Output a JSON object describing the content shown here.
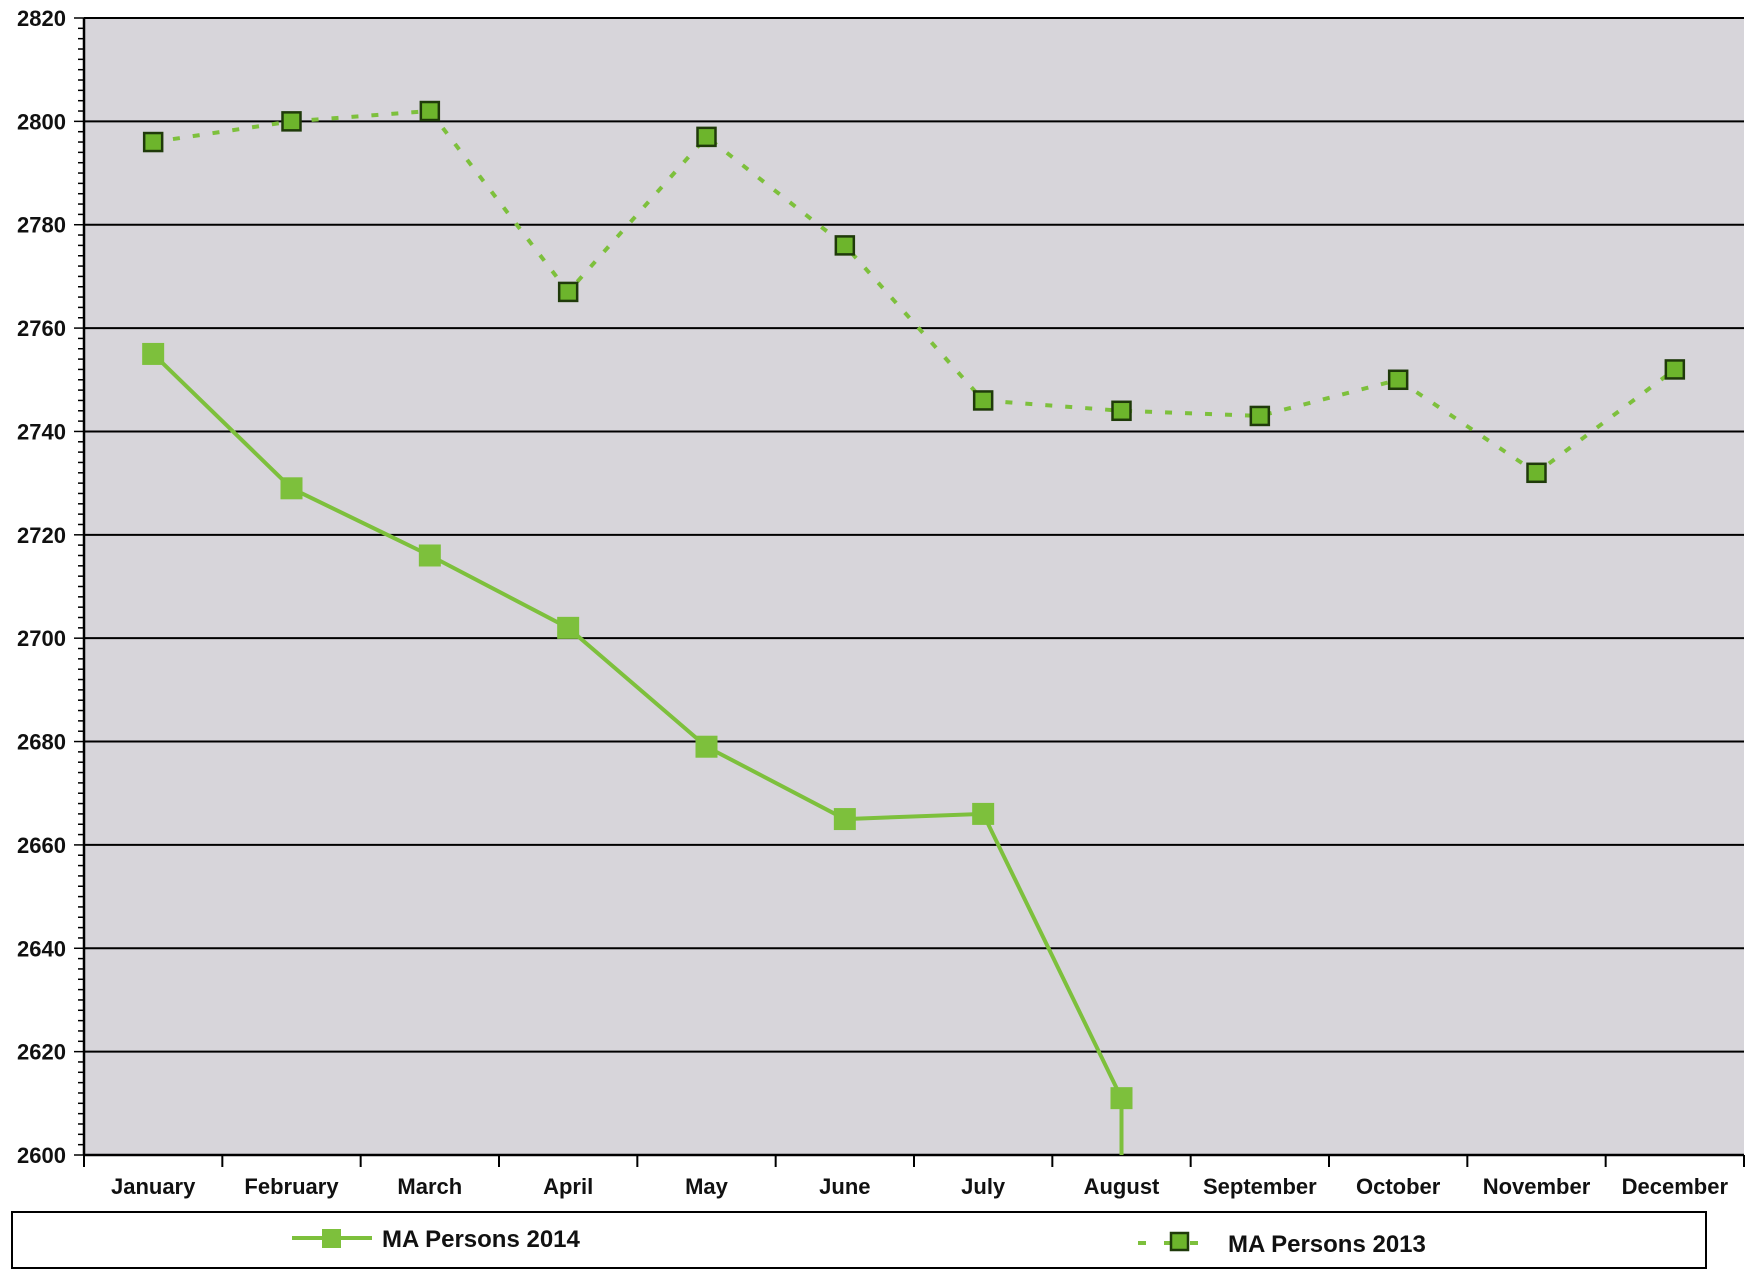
{
  "chart_data": {
    "type": "line",
    "categories": [
      "January",
      "February",
      "March",
      "April",
      "May",
      "June",
      "July",
      "August",
      "September",
      "October",
      "November",
      "December"
    ],
    "series": [
      {
        "name": "MA Persons 2014",
        "values": [
          2755,
          2729,
          2716,
          2702,
          2679,
          2665,
          2666,
          2611,
          null,
          null,
          null,
          null
        ],
        "trailing_drop_to": 2600,
        "style": "solid"
      },
      {
        "name": "MA Persons 2013",
        "values": [
          2796,
          2800,
          2802,
          2767,
          2797,
          2776,
          2746,
          2744,
          2743,
          2750,
          2732,
          2752
        ],
        "style": "dotted"
      }
    ],
    "ylim": [
      2600,
      2820
    ],
    "yticks": [
      2600,
      2620,
      2640,
      2660,
      2680,
      2700,
      2720,
      2740,
      2760,
      2780,
      2800,
      2820
    ],
    "title": "",
    "xlabel": "",
    "ylabel": "",
    "grid": true,
    "legend_position": "bottom",
    "colors": {
      "series_line": "#7dc03c",
      "marker_fill": "#6db52c",
      "marker_edge_2013": "#1f3a0a",
      "plot_background": "#d7d5da",
      "gridline": "#000000"
    }
  }
}
